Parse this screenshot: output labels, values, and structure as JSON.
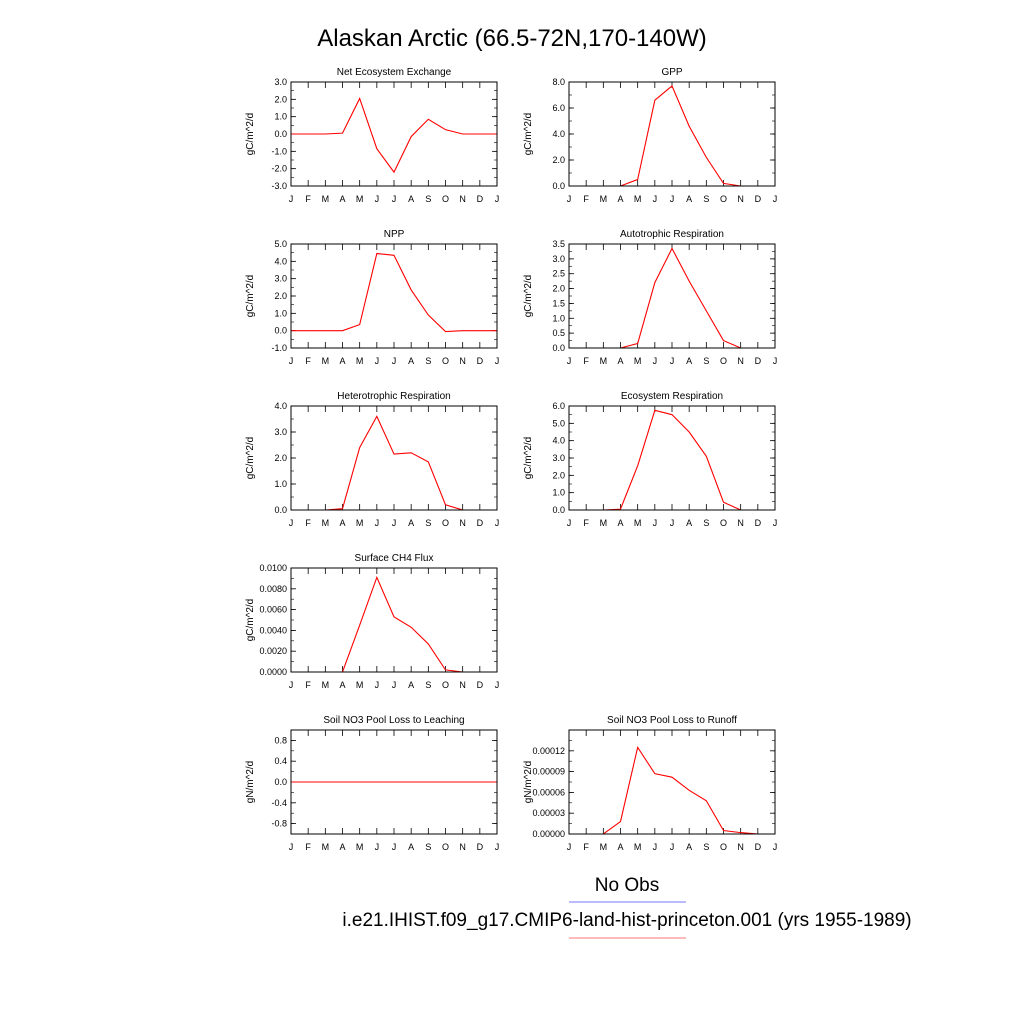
{
  "figure": {
    "title": "Alaskan Arctic (66.5-72N,170-140W)",
    "legend": [
      {
        "label": "No Obs",
        "color": "#7777ff"
      },
      {
        "label": "i.e21.IHIST.f09_g17.CMIP6-land-hist-princeton.001 (yrs 1955-1989)",
        "color": "#ff7777"
      }
    ]
  },
  "chart_data": [
    {
      "type": "line",
      "title": "Net Ecosystem Exchange",
      "ylabel": "gC/m^2/d",
      "categories": [
        "J",
        "F",
        "M",
        "A",
        "M",
        "J",
        "J",
        "A",
        "S",
        "O",
        "N",
        "D",
        "J"
      ],
      "ylim": [
        -3.0,
        3.0
      ],
      "yticks": [
        "3.0",
        "2.0",
        "1.0",
        "0.0",
        "-1.0",
        "-2.0",
        "-3.0"
      ],
      "series": [
        {
          "color": "#ff0000",
          "values": [
            0.0,
            0.0,
            0.0,
            0.05,
            2.05,
            -0.85,
            -2.2,
            -0.15,
            0.85,
            0.25,
            0.0,
            0.0,
            0.0
          ]
        }
      ]
    },
    {
      "type": "line",
      "title": "GPP",
      "ylabel": "gC/m^2/d",
      "categories": [
        "J",
        "F",
        "M",
        "A",
        "M",
        "J",
        "J",
        "A",
        "S",
        "O",
        "N",
        "D",
        "J"
      ],
      "ylim": [
        0,
        8
      ],
      "yticks": [
        "8.0",
        "6.0",
        "4.0",
        "2.0",
        "0.0"
      ],
      "series": [
        {
          "color": "#ff0000",
          "values": [
            0.0,
            0.0,
            0.0,
            0.0,
            0.5,
            6.6,
            7.7,
            4.6,
            2.2,
            0.2,
            0.0,
            0.0,
            0.0
          ]
        }
      ]
    },
    {
      "type": "line",
      "title": "NPP",
      "ylabel": "gC/m^2/d",
      "categories": [
        "J",
        "F",
        "M",
        "A",
        "M",
        "J",
        "J",
        "A",
        "S",
        "O",
        "N",
        "D",
        "J"
      ],
      "ylim": [
        -1.0,
        5.0
      ],
      "yticks": [
        "5.0",
        "4.0",
        "3.0",
        "2.0",
        "1.0",
        "0.0",
        "-1.0"
      ],
      "series": [
        {
          "color": "#ff0000",
          "values": [
            0.0,
            0.0,
            0.0,
            0.0,
            0.35,
            4.45,
            4.35,
            2.35,
            0.9,
            -0.05,
            0.0,
            0.0,
            0.0
          ]
        }
      ]
    },
    {
      "type": "line",
      "title": "Autotrophic Respiration",
      "ylabel": "gC/m^2/d",
      "categories": [
        "J",
        "F",
        "M",
        "A",
        "M",
        "J",
        "J",
        "A",
        "S",
        "O",
        "N",
        "D",
        "J"
      ],
      "ylim": [
        0,
        3.5
      ],
      "yticks": [
        "3.5",
        "3.0",
        "2.5",
        "2.0",
        "1.5",
        "1.0",
        "0.5",
        "0.0"
      ],
      "series": [
        {
          "color": "#ff0000",
          "values": [
            0.0,
            0.0,
            0.0,
            0.0,
            0.15,
            2.2,
            3.35,
            2.25,
            1.25,
            0.25,
            0.0,
            0.0,
            0.0
          ]
        }
      ]
    },
    {
      "type": "line",
      "title": "Heterotrophic Respiration",
      "ylabel": "gC/m^2/d",
      "categories": [
        "J",
        "F",
        "M",
        "A",
        "M",
        "J",
        "J",
        "A",
        "S",
        "O",
        "N",
        "D",
        "J"
      ],
      "ylim": [
        0,
        4.0
      ],
      "yticks": [
        "4.0",
        "3.0",
        "2.0",
        "1.0",
        "0.0"
      ],
      "series": [
        {
          "color": "#ff0000",
          "values": [
            0.0,
            0.0,
            0.0,
            0.05,
            2.4,
            3.6,
            2.15,
            2.2,
            1.85,
            0.2,
            0.0,
            0.0,
            0.0
          ]
        }
      ]
    },
    {
      "type": "line",
      "title": "Ecosystem Respiration",
      "ylabel": "gC/m^2/d",
      "categories": [
        "J",
        "F",
        "M",
        "A",
        "M",
        "J",
        "J",
        "A",
        "S",
        "O",
        "N",
        "D",
        "J"
      ],
      "ylim": [
        0,
        6.0
      ],
      "yticks": [
        "6.0",
        "5.0",
        "4.0",
        "3.0",
        "2.0",
        "1.0",
        "0.0"
      ],
      "series": [
        {
          "color": "#ff0000",
          "values": [
            0.0,
            0.0,
            0.0,
            0.05,
            2.55,
            5.75,
            5.5,
            4.5,
            3.1,
            0.45,
            0.0,
            0.0,
            0.0
          ]
        }
      ]
    },
    {
      "type": "line",
      "title": "Surface CH4 Flux",
      "ylabel": "gC/m^2/d",
      "categories": [
        "J",
        "F",
        "M",
        "A",
        "M",
        "J",
        "J",
        "A",
        "S",
        "O",
        "N",
        "D",
        "J"
      ],
      "ylim": [
        0,
        0.01
      ],
      "yticks": [
        "0.0100",
        "0.0080",
        "0.0060",
        "0.0040",
        "0.0020",
        "0.0000"
      ],
      "series": [
        {
          "color": "#ff0000",
          "values": [
            0.0,
            0.0,
            0.0,
            0.0,
            0.0045,
            0.0091,
            0.0053,
            0.0043,
            0.0027,
            0.0002,
            0.0,
            0.0,
            0.0
          ]
        }
      ]
    },
    {
      "type": "line",
      "title": "Soil NO3 Pool Loss to Leaching",
      "ylabel": "gN/m^2/d",
      "categories": [
        "J",
        "F",
        "M",
        "A",
        "M",
        "J",
        "J",
        "A",
        "S",
        "O",
        "N",
        "D",
        "J"
      ],
      "ylim": [
        -1.0,
        1.0
      ],
      "yticks": [
        "0.8",
        "0.4",
        "0.0",
        "-0.4",
        "-0.8"
      ],
      "ytickvals": [
        0.8,
        0.4,
        0.0,
        -0.4,
        -0.8
      ],
      "series": [
        {
          "color": "#ff0000",
          "values": [
            0.0,
            0.0,
            0.0,
            0.0,
            0.0,
            0.0,
            0.0,
            0.0,
            0.0,
            0.0,
            0.0,
            0.0,
            0.0
          ]
        }
      ]
    },
    {
      "type": "line",
      "title": "Soil NO3 Pool Loss to Runoff",
      "ylabel": "gN/m^2/d",
      "categories": [
        "J",
        "F",
        "M",
        "A",
        "M",
        "J",
        "J",
        "A",
        "S",
        "O",
        "N",
        "D",
        "J"
      ],
      "ylim": [
        0,
        0.00015
      ],
      "yticks": [
        "0.00012",
        "0.00009",
        "0.00006",
        "0.00003",
        "0.00000"
      ],
      "ytickvals": [
        0.00012,
        9e-05,
        6e-05,
        3e-05,
        0.0
      ],
      "series": [
        {
          "color": "#ff0000",
          "values": [
            0.0,
            0.0,
            0.0,
            1.8e-05,
            0.000125,
            8.7e-05,
            8.2e-05,
            6.3e-05,
            4.8e-05,
            5e-06,
            2e-06,
            0.0,
            0.0
          ]
        }
      ]
    }
  ]
}
